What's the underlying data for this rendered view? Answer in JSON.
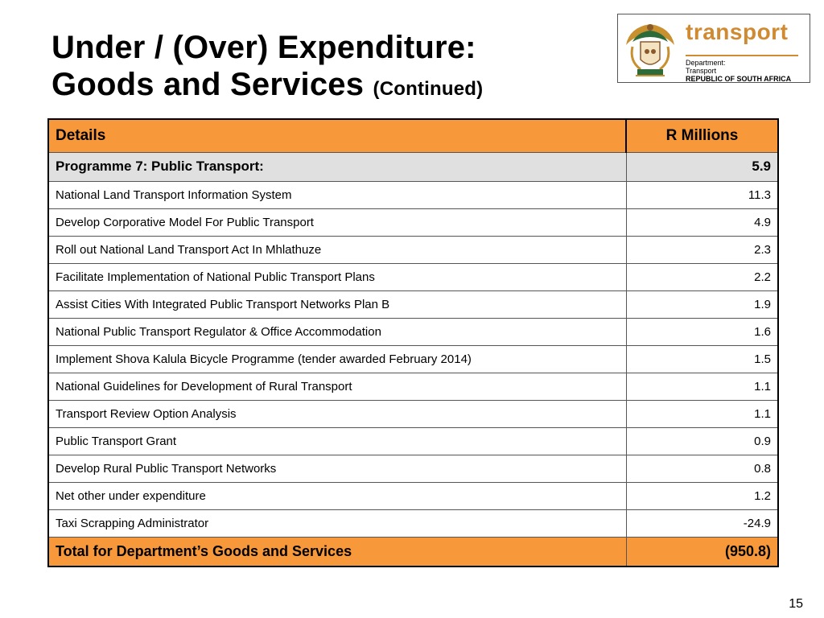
{
  "title": {
    "line1": "Under / (Over) Expenditure:",
    "line2": "Goods and Services",
    "suffix": "(Continued)"
  },
  "logo": {
    "word": "transport",
    "dept_line1": "Department:",
    "dept_line2": "Transport",
    "dept_line3": "REPUBLIC OF SOUTH AFRICA",
    "accent_color": "#D08A32"
  },
  "table": {
    "headers": {
      "details": "Details",
      "amount": "R Millions"
    },
    "programme": {
      "label": "Programme 7: Public Transport:",
      "value": "5.9"
    },
    "rows": [
      {
        "label": "National Land Transport Information System",
        "value": "11.3"
      },
      {
        "label": "Develop Corporative Model For Public Transport",
        "value": "4.9"
      },
      {
        "label": "Roll out National Land Transport Act In Mhlathuze",
        "value": "2.3"
      },
      {
        "label": "Facilitate Implementation of National Public Transport Plans",
        "value": "2.2"
      },
      {
        "label": "Assist Cities With Integrated Public Transport Networks Plan B",
        "value": "1.9"
      },
      {
        "label": "National Public Transport Regulator & Office Accommodation",
        "value": "1.6"
      },
      {
        "label": "Implement Shova Kalula Bicycle Programme (tender awarded February 2014)",
        "value": "1.5"
      },
      {
        "label": "National Guidelines for Development of Rural Transport",
        "value": "1.1"
      },
      {
        "label": "Transport Review Option Analysis",
        "value": "1.1"
      },
      {
        "label": "Public Transport Grant",
        "value": "0.9"
      },
      {
        "label": "Develop Rural Public Transport Networks",
        "value": "0.8"
      },
      {
        "label": "Net other under expenditure",
        "value": "1.2"
      },
      {
        "label": "Taxi Scrapping Administrator",
        "value": "-24.9"
      }
    ],
    "total": {
      "label": "Total for Department’s Goods and Services",
      "value": "(950.8)"
    },
    "colors": {
      "header_fill": "#F7983A",
      "programme_fill": "#E0E0E0"
    }
  },
  "page_number": "15"
}
